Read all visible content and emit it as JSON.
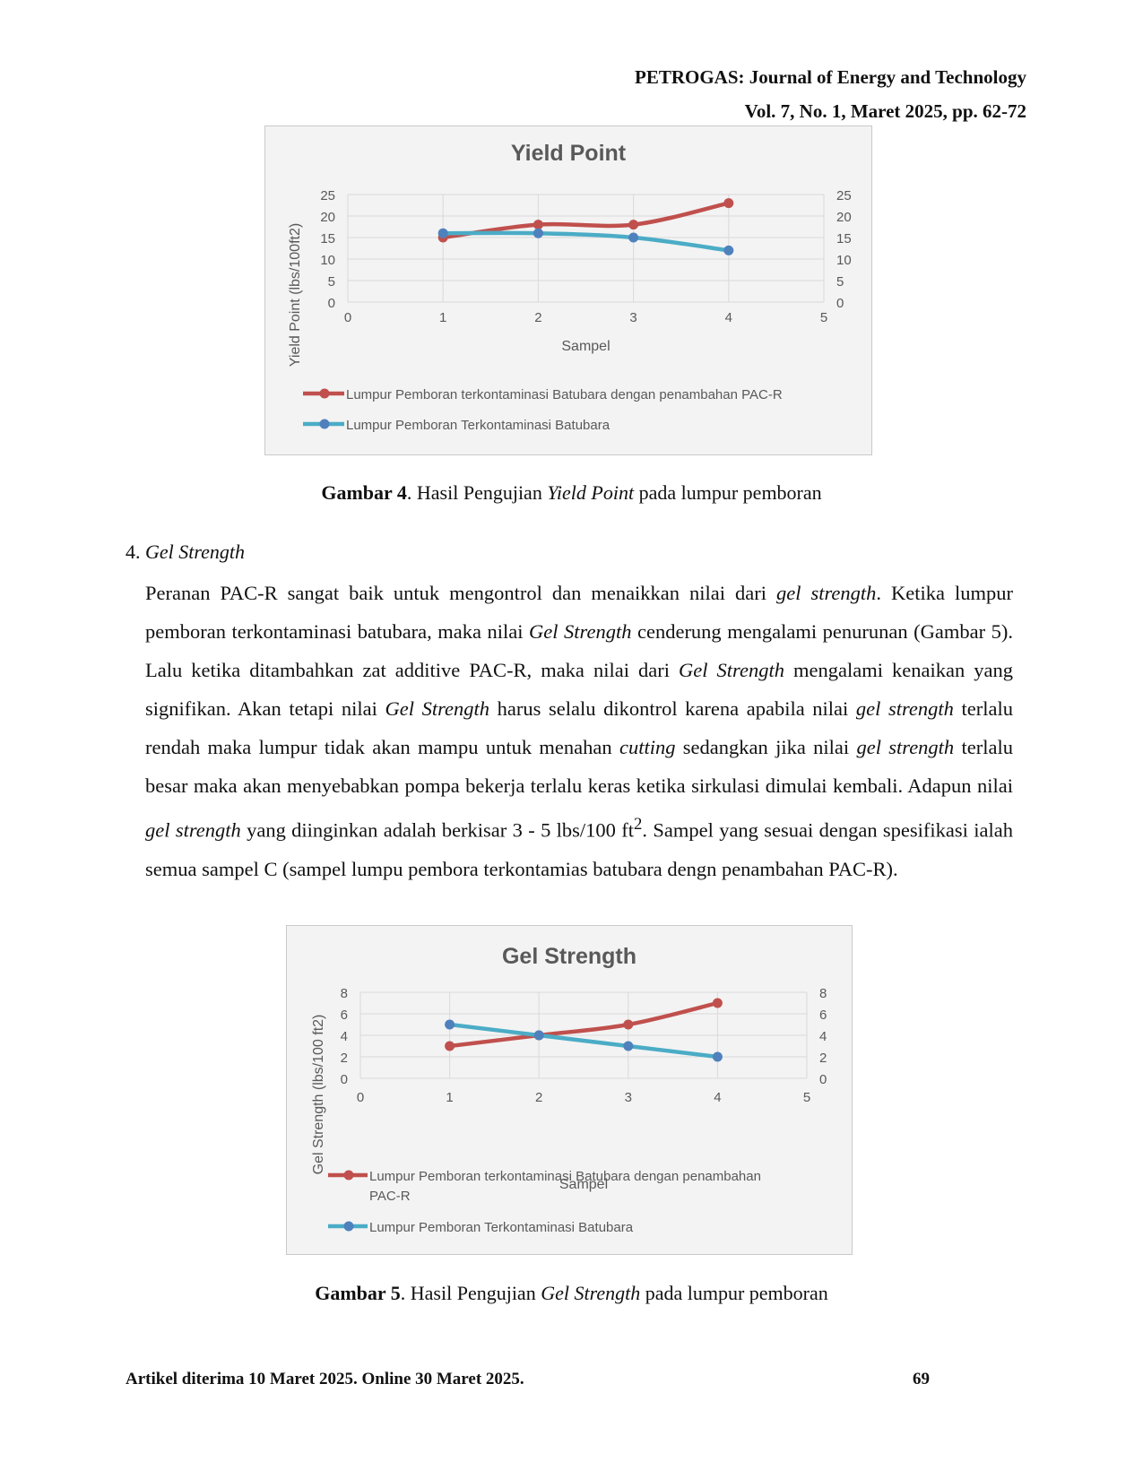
{
  "header": {
    "journal": "PETROGAS: Journal of Energy and Technology",
    "volume": "Vol. 7, No. 1, Maret 2025, pp. 62-72"
  },
  "colors": {
    "red_series": "#c0504d",
    "blue_series": "#4f81bd",
    "blue_line": "#4bacc6"
  },
  "figure4": {
    "caption_label": "Gambar 4",
    "caption_pre": ".  Hasil Pengujian ",
    "caption_italic": "Yield Point",
    "caption_post": " pada lumpur pemboran"
  },
  "section": {
    "number": "4. ",
    "title": "Gel Strength"
  },
  "paragraph": {
    "s1": "Peranan PAC-R sangat baik untuk mengontrol dan menaikkan nilai dari ",
    "i1": "gel strength",
    "s2": ". Ketika lumpur pemboran terkontaminasi batubara, maka nilai ",
    "i2": "Gel Strength",
    "s3": " cenderung mengalami penurunan (Gambar 5). Lalu ketika ditambahkan zat additive PAC-R, maka nilai dari ",
    "i3": "Gel Strength",
    "s4": " mengalami kenaikan yang signifikan. Akan tetapi nilai ",
    "i4": "Gel Strength",
    "s5": " harus selalu dikontrol karena apabila nilai ",
    "i5": "gel strength",
    "s6": " terlalu rendah maka lumpur tidak akan mampu untuk menahan ",
    "i6": "cutting",
    "s7": " sedangkan jika nilai ",
    "i7": "gel strength",
    "s8": " terlalu besar maka akan menyebabkan pompa bekerja terlalu keras ketika sirkulasi dimulai kembali. Adapun nilai ",
    "i8": "gel strength",
    "s9": " yang diinginkan adalah berkisar 3 - 5 lbs/100 ft",
    "sup": "2",
    "s10": ". Sampel yang sesuai dengan spesifikasi ialah semua sampel C (sampel lumpu pembora terkontamias batubara dengn penambahan PAC-R)."
  },
  "figure5": {
    "caption_label": "Gambar 5",
    "caption_pre": ". Hasil Pengujian ",
    "caption_italic": "Gel Strength",
    "caption_post": " pada lumpur pemboran"
  },
  "footer": {
    "left": "Artikel diterima 10 Maret 2025. Online 30 Maret 2025.",
    "page": "69"
  },
  "chart_data": [
    {
      "type": "line",
      "title": "Yield Point",
      "xlabel": "Sampel",
      "ylabel": "Yield Point (lbs/100ft2)",
      "xlim": [
        0,
        5
      ],
      "ylim": [
        0,
        25
      ],
      "xticks": [
        "0",
        "1",
        "2",
        "3",
        "4",
        "5"
      ],
      "yticks": [
        "0",
        "5",
        "10",
        "15",
        "20",
        "25"
      ],
      "secondary_yticks": [
        "0",
        "5",
        "10",
        "15",
        "20",
        "25"
      ],
      "grid": true,
      "legend_position": "bottom",
      "legend_lines": [
        [
          "Lumpur Pemboran terkontaminasi Batubara dengan penambahan PAC-R"
        ],
        [
          "Lumpur Pemboran Terkontaminasi Batubara"
        ]
      ],
      "series": [
        {
          "name": "Lumpur Pemboran terkontaminasi Batubara dengan penambahan PAC-R",
          "color": "#c0504d",
          "x": [
            1,
            2,
            3,
            4
          ],
          "y": [
            15,
            18,
            18,
            23
          ]
        },
        {
          "name": "Lumpur Pemboran Terkontaminasi Batubara",
          "color": "#4f81bd",
          "x": [
            1,
            2,
            3,
            4
          ],
          "y": [
            16,
            16,
            15,
            12
          ]
        }
      ]
    },
    {
      "type": "line",
      "title": "Gel Strength",
      "xlabel": "Sampel",
      "ylabel": "Gel Strength (lbs/100 ft2)",
      "xlim": [
        0,
        5
      ],
      "ylim": [
        0,
        8
      ],
      "xticks": [
        "0",
        "1",
        "2",
        "3",
        "4",
        "5"
      ],
      "yticks": [
        "0",
        "2",
        "4",
        "6",
        "8"
      ],
      "secondary_yticks": [
        "0",
        "2",
        "4",
        "6",
        "8"
      ],
      "grid": true,
      "legend_position": "bottom",
      "legend_lines": [
        [
          "Lumpur Pemboran terkontaminasi Batubara dengan penambahan",
          "PAC-R"
        ],
        [
          "Lumpur Pemboran Terkontaminasi Batubara"
        ]
      ],
      "series": [
        {
          "name": "Lumpur Pemboran terkontaminasi Batubara dengan penambahan PAC-R",
          "color": "#c0504d",
          "x": [
            1,
            2,
            3,
            4
          ],
          "y": [
            3,
            4,
            5,
            7
          ]
        },
        {
          "name": "Lumpur Pemboran Terkontaminasi Batubara",
          "color": "#4f81bd",
          "x": [
            1,
            2,
            3,
            4
          ],
          "y": [
            5,
            4,
            3,
            2
          ]
        }
      ]
    }
  ]
}
